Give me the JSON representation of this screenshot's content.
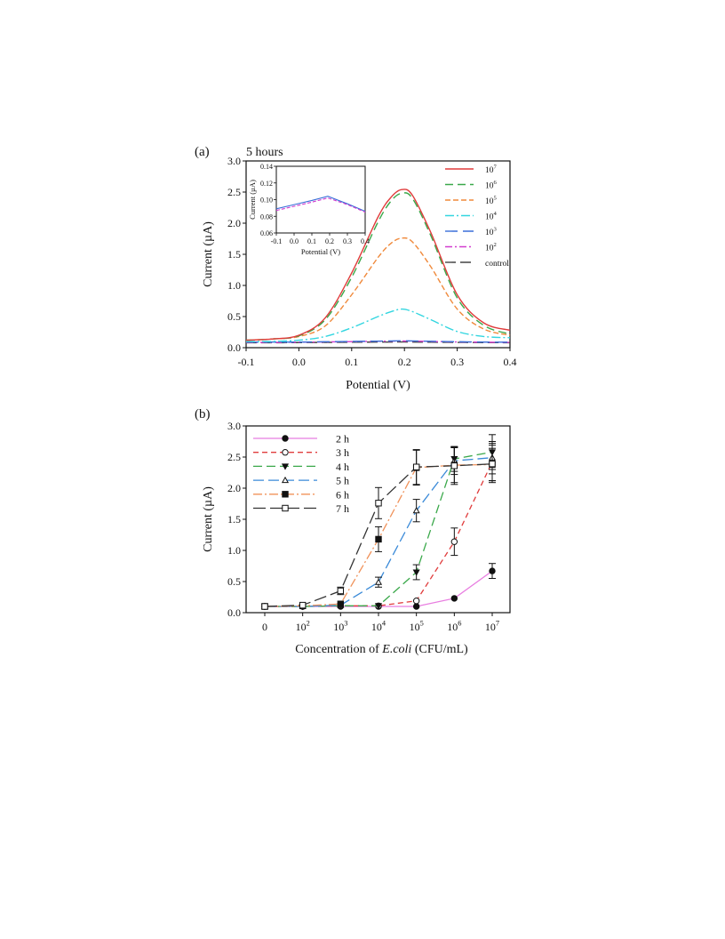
{
  "chart_data": [
    {
      "panel_label": "(a)",
      "title": "5 hours",
      "type": "line",
      "xlabel": "Potential (V)",
      "ylabel": "Current (µA)",
      "xlim": [
        -0.1,
        0.4
      ],
      "ylim": [
        0.0,
        3.0
      ],
      "xticks": [
        "-0.1",
        "0.0",
        "0.1",
        "0.2",
        "0.3",
        "0.4"
      ],
      "yticks": [
        "0.0",
        "0.5",
        "1.0",
        "1.5",
        "2.0",
        "2.5",
        "3.0"
      ],
      "grid": false,
      "legend_placement": "top-right",
      "x": [
        -0.1,
        -0.05,
        0.0,
        0.05,
        0.1,
        0.15,
        0.175,
        0.195,
        0.215,
        0.25,
        0.3,
        0.35,
        0.4
      ],
      "series": [
        {
          "name": "10^7",
          "legend": {
            "base": "10",
            "exp": "7"
          },
          "color": "#e03c3c",
          "dash": "solid",
          "values": [
            0.12,
            0.14,
            0.2,
            0.48,
            1.2,
            2.1,
            2.42,
            2.54,
            2.45,
            1.85,
            0.85,
            0.4,
            0.28
          ]
        },
        {
          "name": "10^6",
          "legend": {
            "base": "10",
            "exp": "6"
          },
          "color": "#3aa84a",
          "dash": "9,5",
          "values": [
            0.12,
            0.14,
            0.19,
            0.45,
            1.13,
            2.02,
            2.36,
            2.48,
            2.4,
            1.8,
            0.8,
            0.36,
            0.22
          ]
        },
        {
          "name": "10^5",
          "legend": {
            "base": "10",
            "exp": "5"
          },
          "color": "#f08a3c",
          "dash": "6,3",
          "values": [
            0.12,
            0.14,
            0.18,
            0.35,
            0.85,
            1.45,
            1.68,
            1.76,
            1.7,
            1.3,
            0.62,
            0.3,
            0.2
          ]
        },
        {
          "name": "10^4",
          "legend": {
            "base": "10",
            "exp": "4"
          },
          "color": "#33d6e0",
          "dash": "10,3,2,3",
          "values": [
            0.1,
            0.1,
            0.12,
            0.18,
            0.32,
            0.5,
            0.58,
            0.62,
            0.58,
            0.45,
            0.26,
            0.18,
            0.16
          ]
        },
        {
          "name": "10^3",
          "legend": {
            "base": "10",
            "exp": "3"
          },
          "color": "#3a6fd8",
          "dash": "14,6",
          "values": [
            0.09,
            0.09,
            0.09,
            0.095,
            0.1,
            0.105,
            0.108,
            0.11,
            0.108,
            0.103,
            0.095,
            0.09,
            0.088
          ]
        },
        {
          "name": "10^2",
          "legend": {
            "base": "10",
            "exp": "2"
          },
          "color": "#d23ccf",
          "dash": "8,3,2,3",
          "values": [
            0.085,
            0.085,
            0.088,
            0.092,
            0.097,
            0.103,
            0.105,
            0.107,
            0.105,
            0.1,
            0.092,
            0.088,
            0.085
          ]
        },
        {
          "name": "control",
          "legend": {
            "base": "control",
            "exp": ""
          },
          "color": "#444444",
          "dash": "12,5",
          "values": [
            0.08,
            0.08,
            0.082,
            0.085,
            0.088,
            0.09,
            0.091,
            0.092,
            0.09,
            0.088,
            0.085,
            0.082,
            0.08
          ]
        }
      ],
      "inset": {
        "type": "line",
        "xlabel": "Potential (V)",
        "ylabel": "Current (µA)",
        "xlim": [
          -0.1,
          0.4
        ],
        "ylim": [
          0.06,
          0.14
        ],
        "xticks": [
          "-0.1",
          "0.0",
          "0.1",
          "0.2",
          "0.3",
          "0.4"
        ],
        "yticks": [
          "0.06",
          "0.08",
          "0.10",
          "0.12",
          "0.14"
        ],
        "x": [
          -0.1,
          0.0,
          0.1,
          0.19,
          0.3,
          0.4
        ],
        "series": [
          {
            "name": "10^3",
            "color": "#3a6fd8",
            "dash": "solid",
            "values": [
              0.089,
              0.094,
              0.099,
              0.104,
              0.095,
              0.086
            ]
          },
          {
            "name": "10^2",
            "color": "#d23ccf",
            "dash": "4,2",
            "values": [
              0.087,
              0.092,
              0.097,
              0.102,
              0.094,
              0.085
            ]
          }
        ]
      }
    },
    {
      "panel_label": "(b)",
      "type": "line",
      "xlabel_prefix": "Concentration of ",
      "xlabel_italic": "E.coli",
      "xlabel_suffix": " (CFU/mL)",
      "ylabel": "Current (µA)",
      "ylim": [
        0.0,
        3.0
      ],
      "yticks": [
        "0.0",
        "0.5",
        "1.0",
        "1.5",
        "2.0",
        "2.5",
        "3.0"
      ],
      "categories": [
        {
          "base": "0",
          "exp": ""
        },
        {
          "base": "10",
          "exp": "2"
        },
        {
          "base": "10",
          "exp": "3"
        },
        {
          "base": "10",
          "exp": "4"
        },
        {
          "base": "10",
          "exp": "5"
        },
        {
          "base": "10",
          "exp": "6"
        },
        {
          "base": "10",
          "exp": "7"
        }
      ],
      "grid": false,
      "legend_placement": "top-left",
      "series": [
        {
          "name": "2 h",
          "color": "#e87de0",
          "dash": "solid",
          "marker": "circle-filled",
          "values": [
            0.1,
            0.1,
            0.1,
            0.1,
            0.1,
            0.23,
            0.67
          ],
          "errors": [
            0,
            0,
            0,
            0,
            0,
            0,
            0.12
          ]
        },
        {
          "name": "3 h",
          "color": "#e03c3c",
          "dash": "6,4",
          "marker": "circle-open",
          "values": [
            0.1,
            0.1,
            0.11,
            0.11,
            0.19,
            1.14,
            2.42
          ],
          "errors": [
            0,
            0,
            0,
            0,
            0,
            0.22,
            0.3
          ]
        },
        {
          "name": "4 h",
          "color": "#3aa84a",
          "dash": "10,5",
          "marker": "triangle-down-filled",
          "values": [
            0.1,
            0.1,
            0.11,
            0.11,
            0.65,
            2.47,
            2.58
          ],
          "errors": [
            0,
            0,
            0,
            0,
            0.12,
            0.2,
            0.28
          ]
        },
        {
          "name": "5 h",
          "color": "#3a8ad8",
          "dash": "12,5",
          "marker": "triangle-up-open",
          "values": [
            0.1,
            0.1,
            0.12,
            0.49,
            1.64,
            2.44,
            2.49
          ],
          "errors": [
            0,
            0,
            0,
            0.08,
            0.18,
            0.22,
            0.26
          ]
        },
        {
          "name": "6 h",
          "color": "#f0925a",
          "dash": "10,3,2,3",
          "marker": "square-filled",
          "values": [
            0.1,
            0.11,
            0.14,
            1.18,
            2.33,
            2.37,
            2.38
          ],
          "errors": [
            0,
            0,
            0,
            0.2,
            0.28,
            0.28,
            0.26
          ]
        },
        {
          "name": "7 h",
          "color": "#333333",
          "dash": "14,5",
          "marker": "square-open",
          "values": [
            0.1,
            0.12,
            0.35,
            1.76,
            2.34,
            2.36,
            2.39
          ],
          "errors": [
            0,
            0,
            0.06,
            0.25,
            0.28,
            0.3,
            0.3
          ]
        }
      ]
    }
  ]
}
